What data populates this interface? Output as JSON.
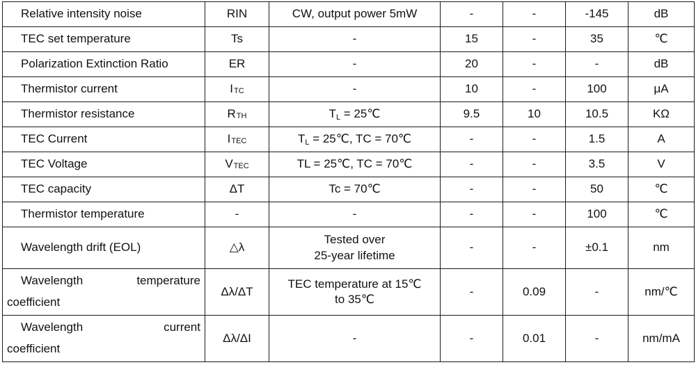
{
  "rows": [
    {
      "param": "Relative intensity noise",
      "symbol": "RIN",
      "sym_sub": "",
      "condition": "CW, output power 5mW",
      "min": "-",
      "typ": "-",
      "max": "-145",
      "unit": "dB"
    },
    {
      "param": "TEC set temperature",
      "symbol": "Ts",
      "sym_sub": "",
      "condition": "-",
      "min": "15",
      "typ": "-",
      "max": "35",
      "unit": "℃"
    },
    {
      "param": "Polarization Extinction Ratio",
      "symbol": "ER",
      "sym_sub": "",
      "condition": "-",
      "min": "20",
      "typ": "-",
      "max": "-",
      "unit": "dB"
    },
    {
      "param": "Thermistor current",
      "symbol": "I",
      "sym_sub": "TC",
      "condition": "-",
      "min": "10",
      "typ": "-",
      "max": "100",
      "unit": "μA"
    },
    {
      "param": "Thermistor resistance",
      "symbol": "R",
      "sym_sub": "TH",
      "condition": "T",
      "cond_sub": "L",
      "cond_rest": " = 25℃",
      "min": "9.5",
      "typ": "10",
      "max": "10.5",
      "unit": "KΩ"
    },
    {
      "param": "TEC Current",
      "symbol": "I",
      "sym_sub": "TEC",
      "condition": "T",
      "cond_sub": "L",
      "cond_rest": " = 25℃, TC = 70℃",
      "min": "-",
      "typ": "-",
      "max": "1.5",
      "unit": "A"
    },
    {
      "param": "TEC Voltage",
      "symbol": "V",
      "sym_sub": "TEC",
      "condition": "TL = 25℃, TC = 70℃",
      "min": "-",
      "typ": "-",
      "max": "3.5",
      "unit": "V"
    },
    {
      "param": "TEC capacity",
      "symbol": "ΔT",
      "sym_sub": "",
      "condition": "Tc = 70℃",
      "min": "-",
      "typ": "-",
      "max": "50",
      "unit": "℃"
    },
    {
      "param": "Thermistor temperature",
      "symbol": "-",
      "sym_sub": "",
      "condition": "-",
      "min": "-",
      "typ": "-",
      "max": "100",
      "unit": "℃"
    },
    {
      "param": "Wavelength drift (EOL)",
      "symbol": "△λ",
      "sym_sub": "",
      "condition_line1": "Tested over",
      "condition_line2": "25-year lifetime",
      "min": "-",
      "typ": "-",
      "max": "±0.1",
      "unit": "nm"
    },
    {
      "param_line1a": "Wavelength",
      "param_line1b": "temperature",
      "param_line2": "coefficient",
      "symbol": "Δλ/ΔT",
      "sym_sub": "",
      "condition_line1": "TEC temperature at 15℃",
      "condition_line2": "to 35℃",
      "min": "-",
      "typ": "0.09",
      "max": "-",
      "unit": "nm/℃"
    },
    {
      "param_line1a": "Wavelength",
      "param_line1b": "current",
      "param_line2": "coefficient",
      "symbol": "Δλ/ΔI",
      "sym_sub": "",
      "condition": "-",
      "min": "-",
      "typ": "0.01",
      "max": "-",
      "unit": "nm/mA"
    }
  ]
}
